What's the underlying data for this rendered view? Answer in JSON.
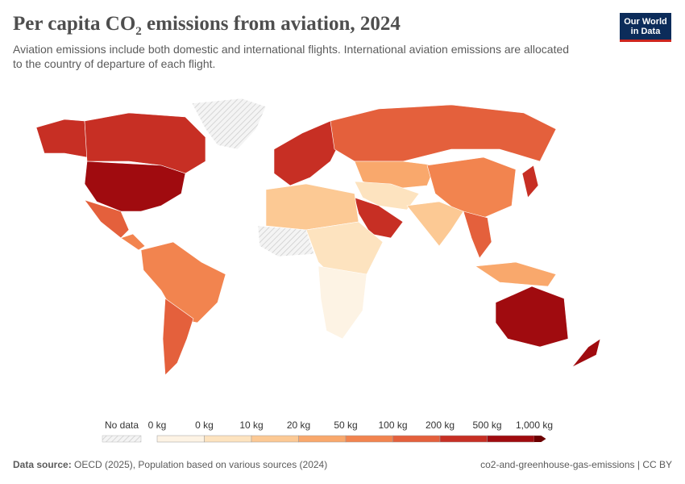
{
  "header": {
    "title": [
      "Per capita CO",
      "2",
      " emissions from aviation, 2024"
    ],
    "subtitle": "Aviation emissions include both domestic and international flights. International aviation emissions are allocated to the country of departure of each flight.",
    "logo": [
      "Our World",
      "in Data"
    ]
  },
  "legend": {
    "no_data": "No data",
    "labels": [
      "0 kg",
      "0 kg",
      "10 kg",
      "20 kg",
      "50 kg",
      "100 kg",
      "200 kg",
      "500 kg",
      "1,000 kg"
    ],
    "colors": [
      "#fdf3e4",
      "#fde3bf",
      "#fcc994",
      "#f9a86c",
      "#f2844f",
      "#e4603c",
      "#c72f24",
      "#a00b0f",
      "#6c0000"
    ]
  },
  "footer": {
    "source_label": "Data source:",
    "source": "OECD (2025), Population based on various sources (2024)",
    "slug": "co2-and-greenhouse-gas-emissions | CC BY"
  }
}
